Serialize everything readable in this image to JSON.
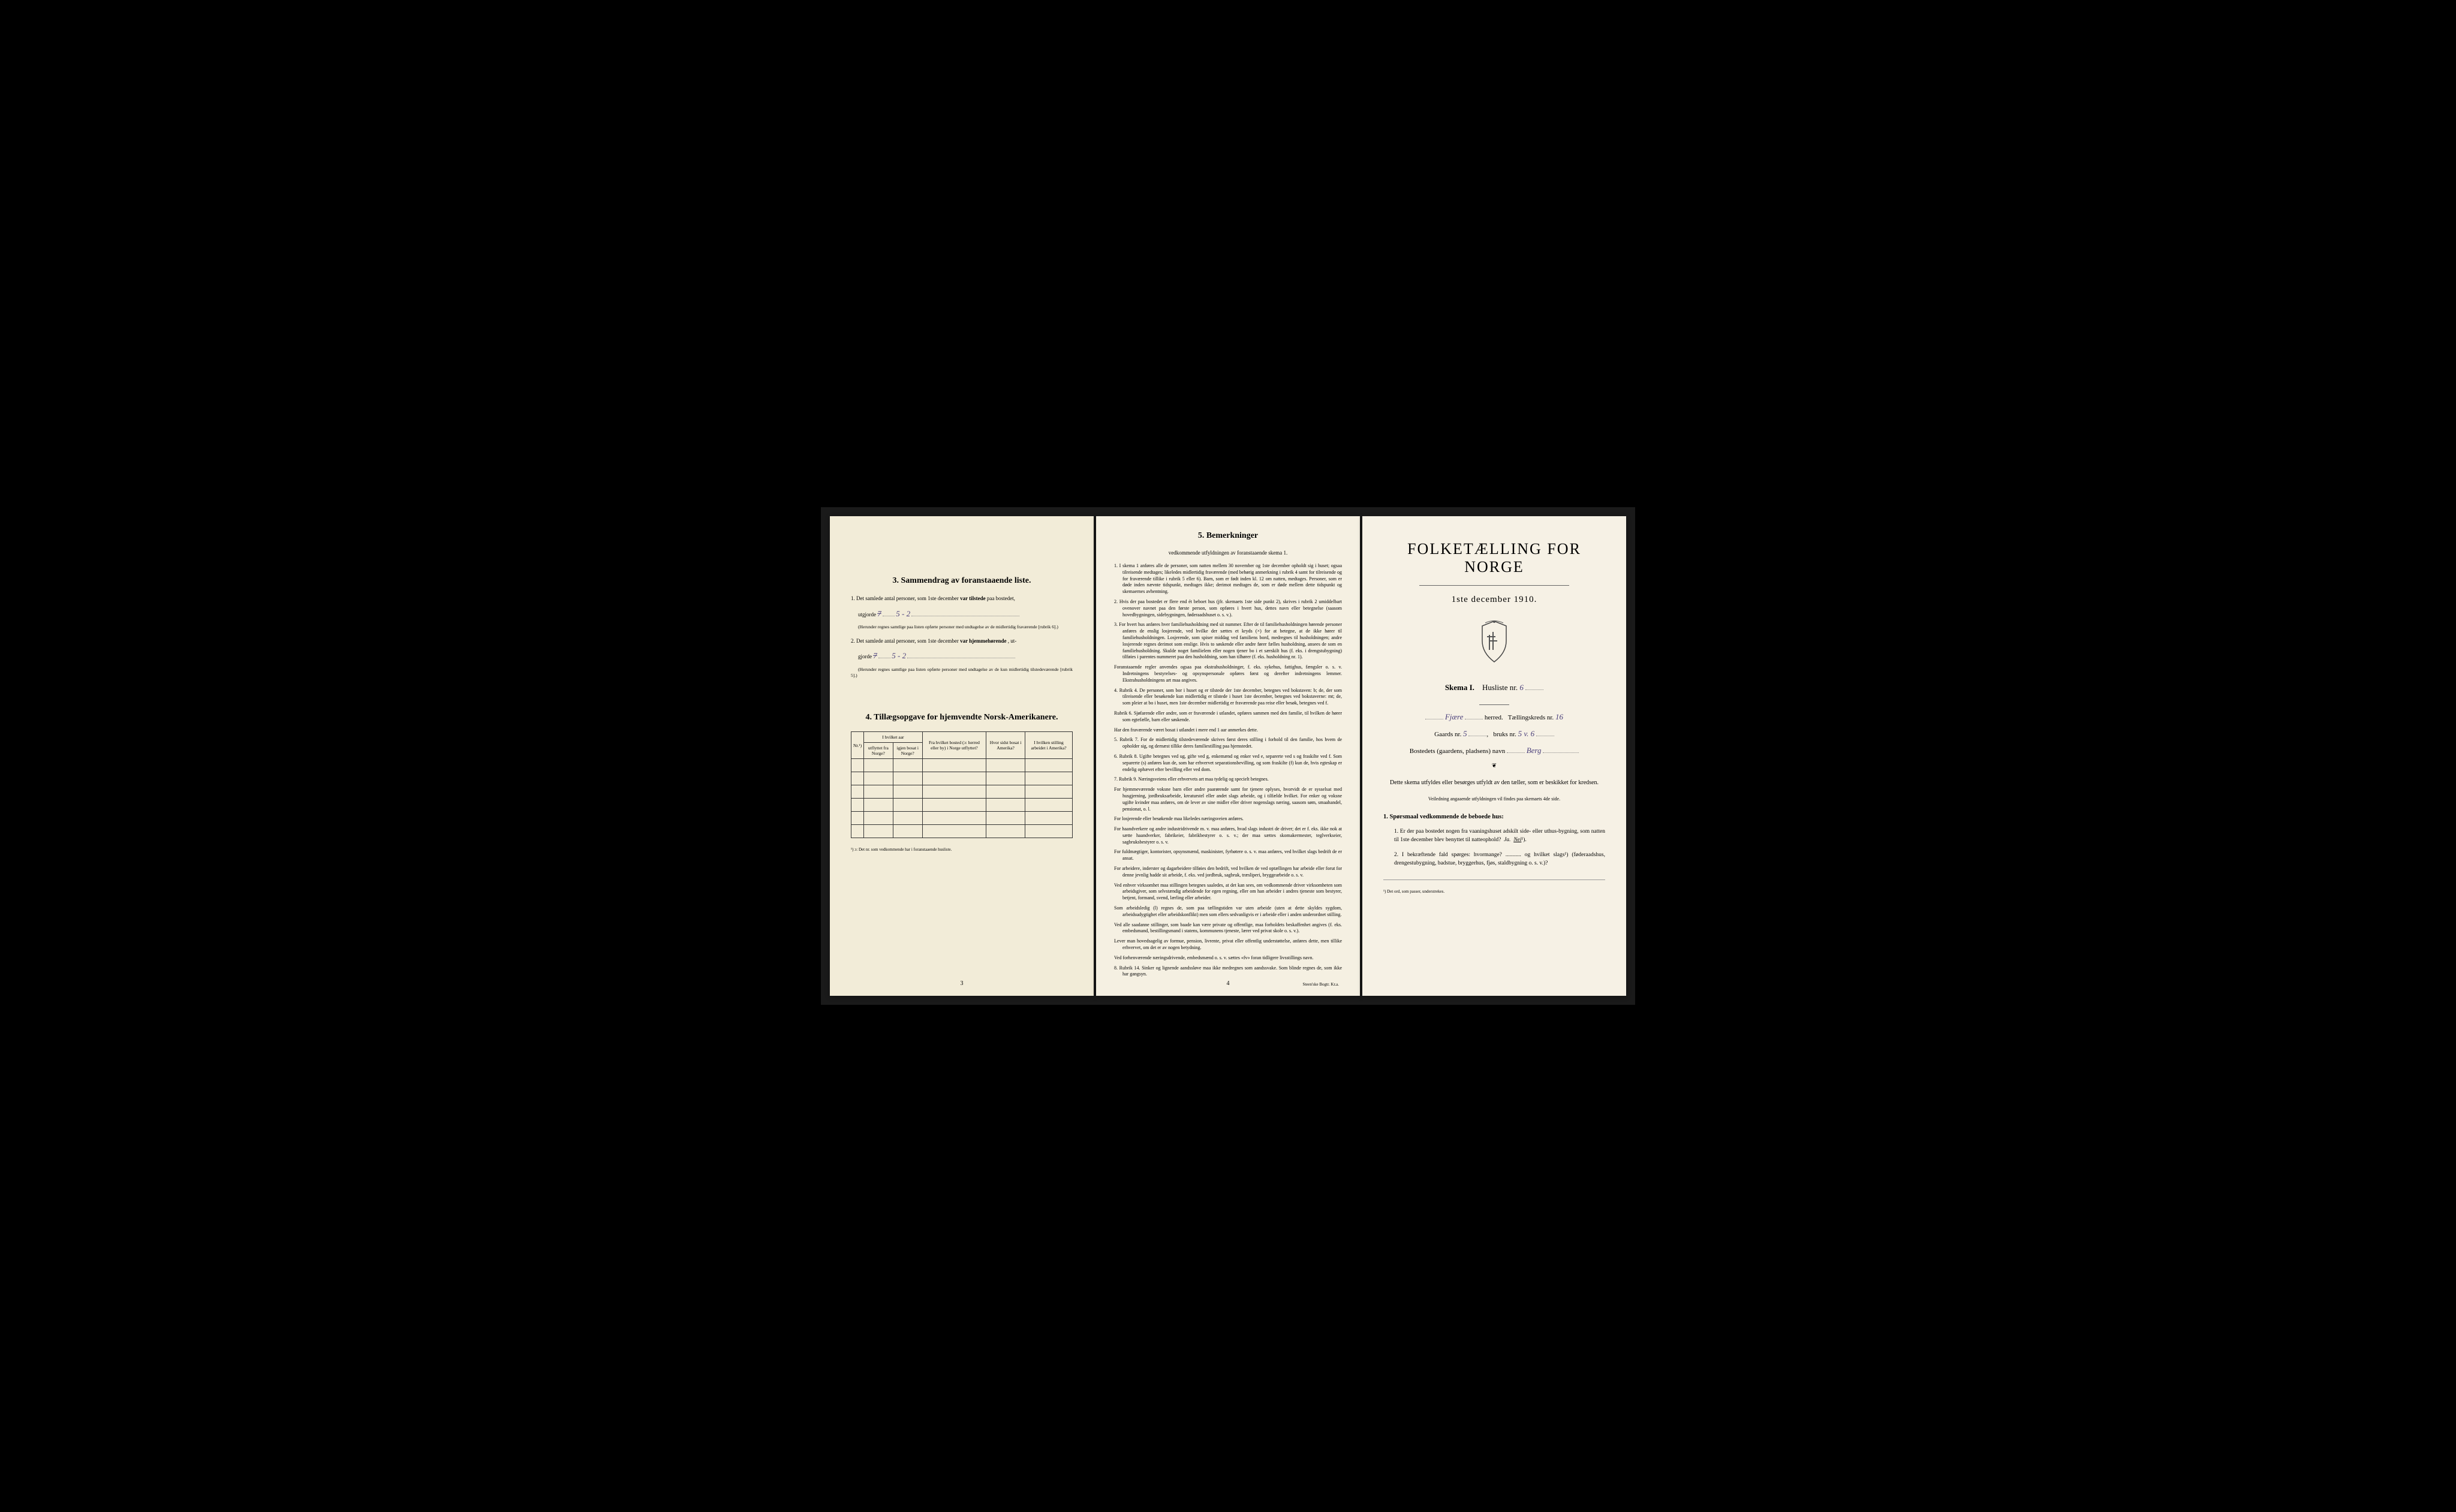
{
  "colors": {
    "page_bg_left": "#f2ecd8",
    "page_bg_middle": "#f5f0e2",
    "page_bg_right": "#f6f1e5",
    "text": "#1a1a1a",
    "handwriting": "#4a3f7a",
    "border": "#333333",
    "background": "#000000"
  },
  "left": {
    "section3": {
      "num": "3.",
      "title": "Sammendrag av foranstaaende liste.",
      "item1_pre": "1. Det samlede antal personer, som 1ste december",
      "item1_bold": "var tilstede",
      "item1_post": "paa bostedet,",
      "item1_line2": "utgjorde",
      "item1_hw_struck": "7",
      "item1_hw": "5 - 2",
      "item1_note": "(Herunder regnes samtlige paa listen opførte personer med undtagelse av de midlertidig fraværende [rubrik 6].)",
      "item2_pre": "2. Det samlede antal personer, som 1ste december",
      "item2_bold": "var hjemmehørende",
      "item2_post": ", ut-",
      "item2_line2": "gjorde",
      "item2_hw_struck": "7",
      "item2_hw": "5 - 2",
      "item2_note": "(Herunder regnes samtlige paa listen opførte personer med undtagelse av de kun midlertidig tilstedeværende [rubrik 5].)"
    },
    "section4": {
      "num": "4.",
      "title": "Tillægsopgave for hjemvendte Norsk-Amerikanere.",
      "headers": {
        "col1": "Nr.¹)",
        "col2_top": "I hvilket aar",
        "col2a": "utflyttet fra Norge?",
        "col2b": "igjen bosat i Norge?",
        "col3": "Fra hvilket bosted (ɔ: herred eller by) i Norge utflyttet?",
        "col4": "Hvor sidst bosat i Amerika?",
        "col5": "I hvilken stilling arbeidet i Amerika?"
      },
      "footnote": "¹) ɔ: Det nr. som vedkommende har i foranstaaende husliste.",
      "rows": 6
    },
    "page_num": "3"
  },
  "middle": {
    "section5": {
      "num": "5.",
      "title": "Bemerkninger",
      "subtitle": "vedkommende utfyldningen av foranstaaende skema 1."
    },
    "items": [
      "1. I skema 1 anføres alle de personer, som natten mellem 30 november og 1ste december opholdt sig i huset; ogsaa tilreisende medtages; likeledes midlertidig fraværende (med behørig anmerkning i rubrik 4 samt for tilreisende og for fraværende tillike i rubrik 5 eller 6). Barn, som er født inden kl. 12 om natten, medtages. Personer, som er døde inden nævnte tidspunkt, medtages ikke; derimot medtages de, som er døde mellem dette tidspunkt og skemaernes avhentning.",
      "2. Hvis der paa bostedet er flere end ét beboet hus (jfr. skemaets 1ste side punkt 2), skrives i rubrik 2 umiddelbart ovenover navnet paa den første person, som opføres i hvert hus, dettes navn eller betegnelse (saasom hovedbygningen, sidebygningen, føderaadshuset o. s. v.).",
      "3. For hvert hus anføres hver familiehusholdning med sit nummer. Efter de til familiehusholdningen hørende personer anføres de enslig losjerende, ved hvilke der sættes et kryds (×) for at betegne, at de ikke hører til familiehusholdningen. Losjerende, som spiser middag ved familiens bord, medregnes til husholdningen; andre losjerende regnes derimot som enslige. Hvis to søskende eller andre fører fælles husholdning, ansees de som en familiehusholdning. Skulde noget familielem eller nogen tjener bo i et særskilt hus (f. eks. i drengstubygning) tilføies i parentes nummeret paa den husholdning, som han tilhører (f. eks. husholdning nr. 1).",
      "Foranstaaende regler anvendes ogsaa paa ekstrahusholdninger, f. eks. sykehus, fattighus, fængsler o. s. v. Indretningens bestyrelses- og opsynspersonale opføres først og derefter indretningens lemmer. Ekstrahusholdningens art maa angives.",
      "4. Rubrik 4. De personer, som bor i huset og er tilstede der 1ste december, betegnes ved bokstaven: b; de, der som tilreisende eller besøkende kun midlertidig er tilstede i huset 1ste december, betegnes ved bokstaverne: mt; de, som pleier at bo i huset, men 1ste december midlertidig er fraværende paa reise eller besøk, betegnes ved f.",
      "Rubrik 6. Sjøfarende eller andre, som er fraværende i utlandet, opføres sammen med den familie, til hvilken de hører som egtefælle, barn eller søskende.",
      "Har den fraværende været bosat i utlandet i mere end 1 aar anmerkes dette.",
      "5. Rubrik 7. For de midlertidig tilstedeværende skrives først deres stilling i forhold til den familie, hos hvem de opholder sig, og dernæst tillike deres familiestilling paa hjemstedet.",
      "6. Rubrik 8. Ugifte betegnes ved ug, gifte ved g, enkemænd og enker ved e, separerte ved s og fraskilte ved f. Som separerte (s) anføres kun de, som har erhvervet separationsbevilling, og som fraskilte (f) kun de, hvis egteskap er endelig ophævet efter bevilling eller ved dom.",
      "7. Rubrik 9. Næringsveiens eller erhvervets art maa tydelig og specielt betegnes.",
      "For hjemmeværende voksne barn eller andre paarørende samt for tjenere oplyses, hvorvidt de er sysselsat med husgjerning, jordbruksarbeide, kreaturstel eller andet slags arbeide, og i tilfælde hvilket. For enker og voksne ugifte kvinder maa anføres, om de lever av sine midler eller driver nogenslags næring, saasom søm, smaahandel, pensionat, o. l.",
      "For losjerende eller besøkende maa likeledes næringsveien anføres.",
      "For haandverkere og andre industridrivende m. v. maa anføres, hvad slags industri de driver; det er f. eks. ikke nok at sætte haandverker, fabrikeier, fabrikbestyrer o. s. v.; der maa sættes skomakermester, teglverkseier, sagbruksbestyrer o. s. v.",
      "For fuldmægtiger, kontorister, opsynsmænd, maskinister, fyrbøtere o. s. v. maa anføres, ved hvilket slags bedrift de er ansat.",
      "For arbeidere, inderster og dagarbeidere tilføies den bedrift, ved hvilken de ved optællingen har arbeide eller forut for denne jevnlig hadde sit arbeide, f. eks. ved jordbruk, sagbruk, træsliperi, bryggearbeide o. s. v.",
      "Ved enhver virksomhet maa stillingen betegnes saaledes, at det kan sees, om vedkommende driver virksomheten som arbeidsgiver, som selvstændig arbeidende for egen regning, eller om han arbeider i andres tjeneste som bestyrer, betjent, formand, svend, lærling eller arbeider.",
      "Som arbeidsledig (l) regnes de, som paa tællingstiden var uten arbeide (uten at dette skyldes sygdom, arbeidsudygtighet eller arbeidskonflikt) men som ellers sedvanligvis er i arbeide eller i anden underordnet stilling.",
      "Ved alle saadanne stillinger, som baade kan være private og offentlige, maa forholdets beskaffenhet angives (f. eks. embedsmand, bestillingsmand i statens, kommunens tjeneste, lærer ved privat skole o. s. v.).",
      "Lever man hovedsagelig av formue, pension, livrente, privat eller offentlig understøttelse, anføres dette, men tillike erhvervet, om det er av nogen betydning.",
      "Ved forhenværende næringsdrivende, embedsmænd o. s. v. sættes «fv» foran tidligere livsstillings navn.",
      "8. Rubrik 14. Sinker og lignende aandssløve maa ikke medregnes som aandssvake. Som blinde regnes de, som ikke har gangsyn."
    ],
    "page_num": "4",
    "footer": "Steen'ske Bogtr. Kr.a."
  },
  "right": {
    "main_title": "FOLKETÆLLING FOR NORGE",
    "subtitle": "1ste december 1910.",
    "skema_label": "Skema I.",
    "husliste_label": "Husliste nr.",
    "husliste_nr": "6",
    "herred_hw": "Fjære",
    "herred_label": "herred.",
    "taellingskreds_label": "Tællingskreds nr.",
    "taellingskreds_nr": "16",
    "gaards_label": "Gaards nr.",
    "gaards_nr": "5",
    "bruks_label": "bruks nr.",
    "bruks_nr": "5 v. 6",
    "bosted_label": "Bostedets (gaardens, pladsens) navn",
    "bosted_hw": "Berg",
    "intro": "Dette skema utfyldes eller besørges utfyldt av den tæller, som er beskikket for kredsen.",
    "veiledning": "Veiledning angaaende utfyldningen vil findes paa skemaets 4de side.",
    "q_header": "1. Spørsmaal vedkommende de beboede hus:",
    "q1": "1. Er der paa bostedet nogen fra vaaningshuset adskilt side- eller uthus-bygning, som natten til 1ste december blev benyttet til natteophold?",
    "q1_ja": "Ja.",
    "q1_nei": "Nei",
    "q1_sup": "¹).",
    "q2": "2. I bekræftende fald spørges: hvormange? ........... og hvilket slags¹) (føderaadshus, drengestubygning, badstue, bryggerhus, fjøs, staldbygning o. s. v.)?",
    "footnote": "¹) Det ord, som passer, understrekes."
  }
}
